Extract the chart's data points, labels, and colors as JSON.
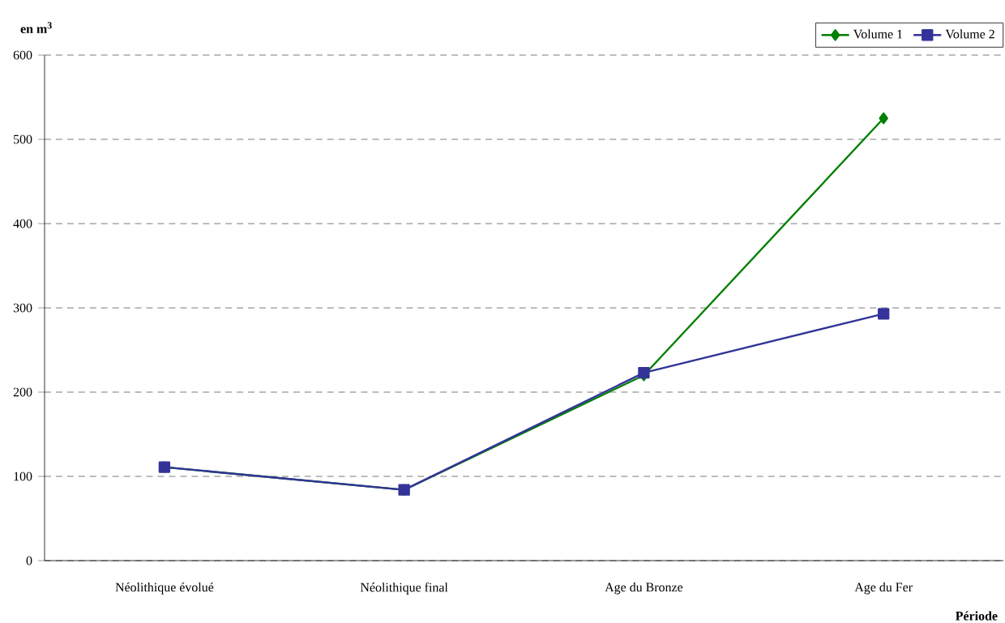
{
  "chart_data": {
    "type": "line",
    "ylabel": "en m$^{3}$",
    "xlabel": "Période",
    "categories": [
      "Néolithique évolué",
      "Néolithique final",
      "Age du Bronze",
      "Age du Fer"
    ],
    "series": [
      {
        "name": "Volume 1",
        "color": "#008000",
        "marker": "diamond",
        "values": [
          111,
          84,
          220,
          525
        ]
      },
      {
        "name": "Volume 2",
        "color": "#333399",
        "marker": "square",
        "values": [
          111,
          84,
          223,
          293
        ]
      }
    ],
    "ylim": [
      0,
      600
    ],
    "yticks": [
      0,
      100,
      200,
      300,
      400,
      500,
      600
    ],
    "grid": "y",
    "legend": "top right",
    "line_style": "solid"
  }
}
